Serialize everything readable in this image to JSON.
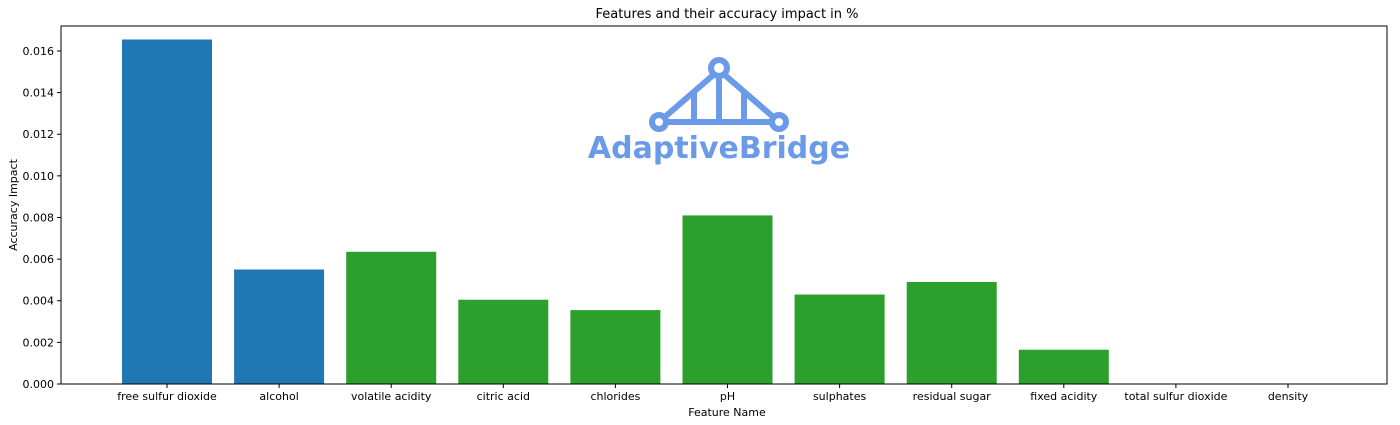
{
  "chart_data": {
    "type": "bar",
    "title": "Features and their accuracy impact in %",
    "xlabel": "Feature Name",
    "ylabel": "Accuracy Impact",
    "ylim": [
      0,
      0.0172
    ],
    "yticks": [
      "0.000",
      "0.002",
      "0.004",
      "0.006",
      "0.008",
      "0.010",
      "0.012",
      "0.014",
      "0.016"
    ],
    "grid": false,
    "categories": [
      "free sulfur dioxide",
      "alcohol",
      "volatile acidity",
      "citric acid",
      "chlorides",
      "pH",
      "sulphates",
      "residual sugar",
      "fixed acidity",
      "total sulfur dioxide",
      "density"
    ],
    "values": [
      0.01655,
      0.0055,
      0.00635,
      0.00405,
      0.00355,
      0.0081,
      0.0043,
      0.0049,
      0.00165,
      0.0,
      0.0
    ],
    "bar_colors": [
      "#1f77b4",
      "#1f77b4",
      "#2ca02c",
      "#2ca02c",
      "#2ca02c",
      "#2ca02c",
      "#2ca02c",
      "#2ca02c",
      "#2ca02c",
      "#2ca02c",
      "#2ca02c"
    ]
  },
  "watermark": {
    "text": "AdaptiveBridge",
    "color": "#6b9be8"
  }
}
